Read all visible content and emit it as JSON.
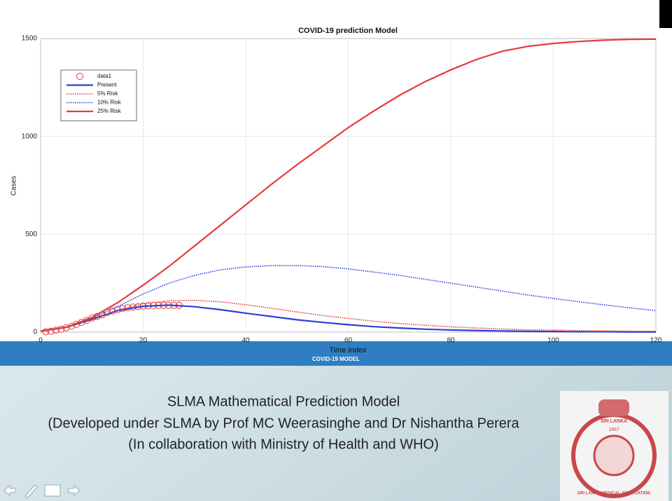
{
  "chart_data": {
    "type": "line",
    "title": "COVID-19 prediction Model",
    "x_label": "Time index",
    "y_label": "Cases",
    "xlim": [
      0,
      120
    ],
    "xticks": [
      0,
      20,
      40,
      60,
      80,
      100,
      120
    ],
    "ylim": [
      0,
      1500
    ],
    "yticks": [
      0,
      500,
      1000,
      1500
    ],
    "grid": true,
    "legend": "upper left",
    "series": [
      {
        "name": "data1",
        "type": "scatter",
        "color": "#e8393b",
        "x": [
          1,
          2,
          3,
          4,
          5,
          6,
          7,
          8,
          9,
          10,
          11,
          12,
          13,
          14,
          15,
          16,
          17,
          18,
          19,
          20,
          21,
          22,
          23,
          24,
          25,
          26,
          27
        ],
        "values": [
          2,
          4,
          10,
          15,
          22,
          30,
          40,
          50,
          60,
          72,
          80,
          88,
          100,
          108,
          115,
          120,
          125,
          128,
          130,
          133,
          135,
          136,
          136,
          137,
          137,
          137,
          137
        ]
      },
      {
        "name": "Present",
        "style": "solid",
        "color": "#2b3fd6",
        "x": [
          0,
          5,
          10,
          15,
          20,
          25,
          30,
          35,
          40,
          45,
          50,
          55,
          60,
          65,
          70,
          75,
          80,
          85,
          90,
          95,
          100,
          105,
          110,
          115,
          120
        ],
        "values": [
          5,
          25,
          65,
          110,
          132,
          138,
          130,
          115,
          97,
          80,
          63,
          50,
          38,
          28,
          21,
          15,
          11,
          8,
          6,
          4,
          3,
          2,
          2,
          1,
          1
        ]
      },
      {
        "name": "5% Risk",
        "style": "dotted",
        "color": "#e8393b",
        "x": [
          0,
          5,
          10,
          15,
          20,
          25,
          30,
          35,
          40,
          45,
          50,
          55,
          60,
          65,
          70,
          75,
          80,
          85,
          90,
          95,
          100,
          105,
          110,
          115,
          120
        ],
        "values": [
          5,
          25,
          65,
          112,
          145,
          160,
          163,
          155,
          140,
          122,
          103,
          85,
          70,
          56,
          44,
          35,
          27,
          21,
          16,
          12,
          10,
          8,
          6,
          5,
          4
        ]
      },
      {
        "name": "10% Risk",
        "style": "dotted",
        "color": "#2b3fd6",
        "x": [
          0,
          5,
          10,
          15,
          20,
          25,
          30,
          35,
          40,
          45,
          50,
          55,
          60,
          65,
          70,
          75,
          80,
          85,
          90,
          95,
          100,
          105,
          110,
          115,
          120
        ],
        "values": [
          5,
          25,
          70,
          130,
          195,
          250,
          290,
          318,
          333,
          340,
          340,
          335,
          323,
          307,
          290,
          270,
          250,
          230,
          210,
          190,
          172,
          155,
          139,
          124,
          110
        ]
      },
      {
        "name": "25% Risk",
        "style": "solid",
        "color": "#e8393b",
        "x": [
          0,
          5,
          10,
          15,
          20,
          25,
          30,
          35,
          40,
          45,
          50,
          55,
          60,
          65,
          70,
          75,
          80,
          85,
          90,
          95,
          100,
          105,
          110,
          115,
          120
        ],
        "values": [
          5,
          25,
          75,
          150,
          240,
          335,
          440,
          545,
          650,
          755,
          855,
          950,
          1045,
          1130,
          1210,
          1280,
          1340,
          1393,
          1435,
          1460,
          1475,
          1485,
          1492,
          1496,
          1497
        ]
      }
    ]
  },
  "banner": "COVID-19 MODEL",
  "caption": [
    "SLMA Mathematical Prediction Model",
    "(Developed under SLMA by Prof MC Weerasinghe and Dr Nishantha Perera",
    "(In collaboration with Ministry of Health and WHO)"
  ],
  "logo": {
    "top": "SRI LANKA",
    "year": "1887",
    "bottom": "SRI LANKA MEDICAL ASSOCIATION"
  }
}
